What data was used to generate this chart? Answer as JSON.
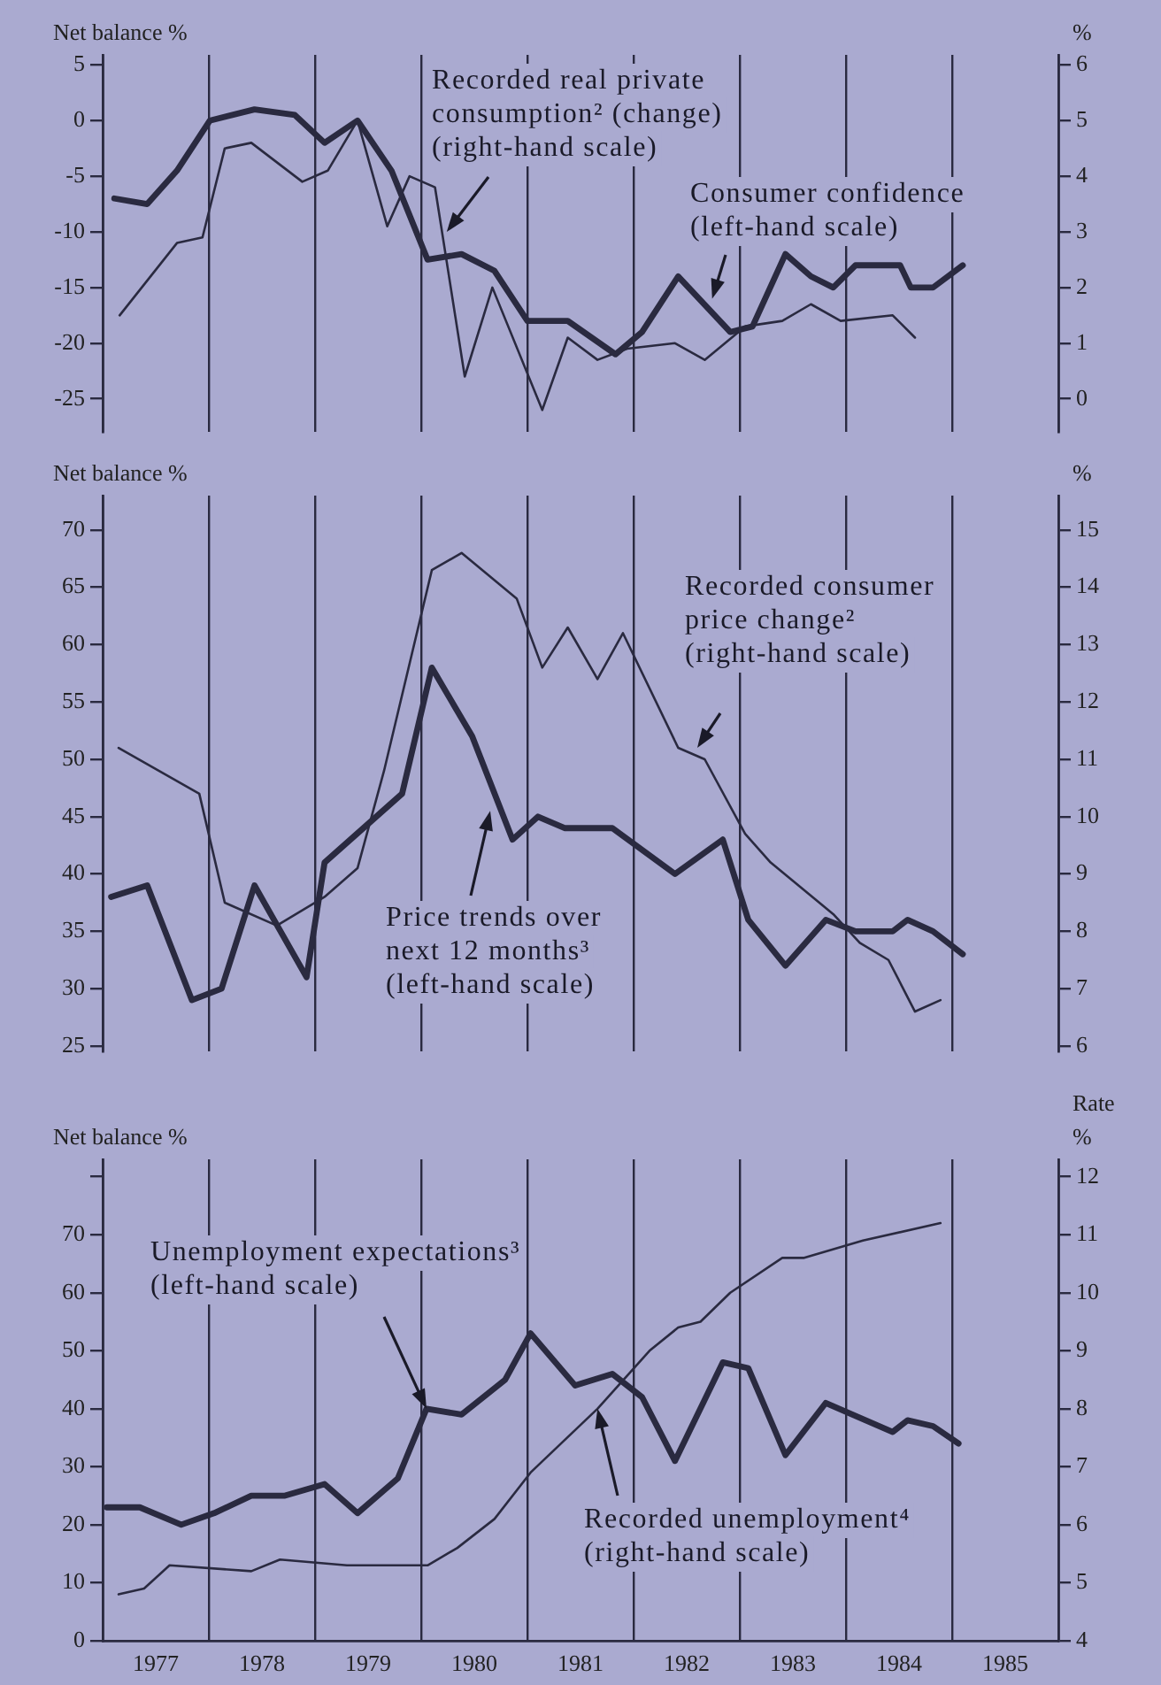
{
  "chart_data": [
    {
      "type": "line",
      "ylabel": "Net balance %",
      "y2label": "%",
      "grid": "x",
      "tick_labels": "y",
      "xlim": [
        1977,
        1986
      ],
      "xticks": [
        {
          "value": 1977,
          "label": null
        },
        {
          "value": 1978,
          "label": null
        },
        {
          "value": 1979,
          "label": null
        },
        {
          "value": 1980,
          "label": null
        },
        {
          "value": 1981,
          "label": null
        },
        {
          "value": 1982,
          "label": null
        },
        {
          "value": 1983,
          "label": null
        },
        {
          "value": 1984,
          "label": null
        },
        {
          "value": 1985,
          "label": null
        },
        {
          "value": 1986,
          "label": null
        }
      ],
      "ylim": [
        -28,
        5.9
      ],
      "yticks": [
        -25,
        -20,
        -15,
        -10,
        -5,
        0,
        5
      ],
      "y2lim": [
        -0.6,
        6.18
      ],
      "y2ticks": [
        0,
        1,
        2,
        3,
        4,
        5,
        6
      ],
      "series": [
        {
          "color": "#2a2a40",
          "x": [
            1977.11,
            1977.42,
            1977.7,
            1978.01,
            1978.43,
            1978.81,
            1979.09,
            1979.4,
            1979.72,
            1980.06,
            1980.38,
            1980.69,
            1981.0,
            1981.38,
            1981.83,
            1982.08,
            1982.42,
            1982.91,
            1983.12,
            1983.43,
            1983.67,
            1983.88,
            1984.09,
            1984.51,
            1984.61,
            1984.82,
            1985.1
          ],
          "values": [
            -7,
            -7.5,
            -4.5,
            0,
            1,
            0.5,
            -2,
            0,
            -4.5,
            -12.5,
            -12,
            -13.5,
            -18,
            -18,
            -21,
            -19,
            -14,
            -19,
            -18.5,
            -12,
            -14,
            -15,
            -13,
            -13,
            -15,
            -15,
            -13
          ]
        },
        {
          "color": "#2a2a40",
          "axis": "y2",
          "x": [
            1977.16,
            1977.7,
            1977.94,
            1978.15,
            1978.4,
            1978.88,
            1979.12,
            1979.4,
            1979.68,
            1979.89,
            1980.13,
            1980.41,
            1980.67,
            1981.14,
            1981.38,
            1981.66,
            1981.94,
            1982.39,
            1982.67,
            1983.05,
            1983.4,
            1983.67,
            1983.95,
            1984.44,
            1984.65
          ],
          "values": [
            1.5,
            2.8,
            2.9,
            4.5,
            4.6,
            3.9,
            4.1,
            5.0,
            3.1,
            4.0,
            3.8,
            0.4,
            2.0,
            -0.2,
            1.1,
            0.7,
            0.9,
            1.0,
            0.7,
            1.3,
            1.4,
            1.7,
            1.4,
            1.5,
            1.1
          ]
        }
      ],
      "annotations": [
        {
          "text": "Recorded real private\nconsumption² (change)\n(right-hand scale)",
          "x": 1980.24,
          "y": -10
        },
        {
          "text": "Consumer confidence\n(left-hand scale)",
          "x": 1982.74,
          "y": -16
        }
      ]
    },
    {
      "type": "line",
      "ylabel": "Net balance %",
      "y2label": "%",
      "grid": "x",
      "tick_labels": "y",
      "xlim": [
        1977,
        1986
      ],
      "xticks": [
        {
          "value": 1977,
          "label": null
        },
        {
          "value": 1978,
          "label": null
        },
        {
          "value": 1979,
          "label": null
        },
        {
          "value": 1980,
          "label": null
        },
        {
          "value": 1981,
          "label": null
        },
        {
          "value": 1982,
          "label": null
        },
        {
          "value": 1983,
          "label": null
        },
        {
          "value": 1984,
          "label": null
        },
        {
          "value": 1985,
          "label": null
        },
        {
          "value": 1986,
          "label": null
        }
      ],
      "ylim": [
        24.5,
        73
      ],
      "yticks": [
        25,
        30,
        35,
        40,
        45,
        50,
        55,
        60,
        65,
        70
      ],
      "y2lim": [
        5.9,
        15.6
      ],
      "y2ticks": [
        6,
        7,
        8,
        9,
        10,
        11,
        12,
        13,
        14,
        15
      ],
      "series": [
        {
          "color": "#2a2a40",
          "x": [
            1977.08,
            1977.42,
            1977.84,
            1978.12,
            1978.43,
            1978.92,
            1979.09,
            1979.82,
            1980.1,
            1980.48,
            1980.86,
            1981.1,
            1981.35,
            1981.8,
            1982.39,
            1982.84,
            1983.08,
            1983.43,
            1983.81,
            1984.09,
            1984.44,
            1984.58,
            1984.82,
            1985.1
          ],
          "values": [
            38,
            39,
            29,
            30,
            39,
            31,
            41,
            47,
            58,
            52,
            43,
            45,
            44,
            44,
            40,
            43,
            36,
            32,
            36,
            35,
            35,
            36,
            35,
            33
          ]
        },
        {
          "color": "#2a2a40",
          "axis": "y2",
          "x": [
            1977.15,
            1977.91,
            1978.15,
            1978.64,
            1979.09,
            1979.4,
            1979.65,
            1980.1,
            1980.38,
            1980.9,
            1981.14,
            1981.38,
            1981.66,
            1981.9,
            1982.42,
            1982.67,
            1983.05,
            1983.29,
            1983.88,
            1984.13,
            1984.4,
            1984.65,
            1984.89
          ],
          "values": [
            11.2,
            10.4,
            8.5,
            8.1,
            8.6,
            9.1,
            10.8,
            14.3,
            14.6,
            13.8,
            12.6,
            13.3,
            12.4,
            13.2,
            11.2,
            11.0,
            9.7,
            9.2,
            8.3,
            7.8,
            7.5,
            6.6,
            6.8
          ]
        }
      ],
      "annotations": [
        {
          "text": "Recorded consumer\nprice change²\n(right-hand scale)",
          "x": 1982.6,
          "y": 51
        },
        {
          "text": "Price trends over\nnext 12 months³\n(left-hand scale)",
          "x": 1980.65,
          "y": 45.5
        }
      ]
    },
    {
      "type": "line",
      "ylabel": "Net balance %",
      "y2label": "Rate %",
      "grid": "x",
      "xlim": [
        1977,
        1986
      ],
      "xticks": [
        {
          "value": 1977,
          "label": null
        },
        {
          "value": 1977.5,
          "label": "1977"
        },
        {
          "value": 1978,
          "label": null
        },
        {
          "value": 1978.5,
          "label": "1978"
        },
        {
          "value": 1979,
          "label": null
        },
        {
          "value": 1979.5,
          "label": "1979"
        },
        {
          "value": 1980,
          "label": null
        },
        {
          "value": 1980.5,
          "label": "1980"
        },
        {
          "value": 1981,
          "label": null
        },
        {
          "value": 1981.5,
          "label": "1981"
        },
        {
          "value": 1982,
          "label": null
        },
        {
          "value": 1982.5,
          "label": "1982"
        },
        {
          "value": 1983,
          "label": null
        },
        {
          "value": 1983.5,
          "label": "1983"
        },
        {
          "value": 1984,
          "label": null
        },
        {
          "value": 1984.5,
          "label": "1984"
        },
        {
          "value": 1985,
          "label": null
        },
        {
          "value": 1985.5,
          "label": "1985"
        },
        {
          "value": 1986,
          "label": null
        }
      ],
      "ylim": [
        0,
        83
      ],
      "yticks": [
        0,
        10,
        20,
        30,
        40,
        50,
        60,
        70,
        {
          "value": 80,
          "label": null
        }
      ],
      "y2lim": [
        4,
        12.3
      ],
      "y2ticks": [
        4,
        5,
        6,
        7,
        8,
        9,
        10,
        11,
        12
      ],
      "series": [
        {
          "color": "#2a2a40",
          "x": [
            1977.04,
            1977.35,
            1977.74,
            1978.05,
            1978.4,
            1978.71,
            1979.09,
            1979.4,
            1979.78,
            1980.05,
            1980.38,
            1980.79,
            1981.03,
            1981.45,
            1981.8,
            1982.08,
            1982.39,
            1982.84,
            1983.08,
            1983.43,
            1983.81,
            1984.44,
            1984.58,
            1984.82,
            1985.06
          ],
          "values": [
            23,
            23,
            20,
            22,
            25,
            25,
            27,
            22,
            28,
            40,
            39,
            45,
            53,
            44,
            46,
            42,
            31,
            48,
            47,
            32,
            41,
            36,
            38,
            37,
            34
          ]
        },
        {
          "color": "#2a2a40",
          "axis": "y2",
          "x": [
            1977.15,
            1977.39,
            1977.63,
            1978.4,
            1978.67,
            1979.3,
            1979.72,
            1980.06,
            1980.34,
            1980.69,
            1981.03,
            1981.66,
            1982.15,
            1982.42,
            1982.63,
            1982.91,
            1983.4,
            1983.6,
            1984.16,
            1984.89
          ],
          "values": [
            4.8,
            4.9,
            5.3,
            5.2,
            5.4,
            5.3,
            5.3,
            5.3,
            5.6,
            6.1,
            6.9,
            8.0,
            9.0,
            9.4,
            9.5,
            10.0,
            10.6,
            10.6,
            10.9,
            11.2
          ]
        }
      ],
      "annotations": [
        {
          "text": "Unemployment expectations³\n(left-hand scale)",
          "x": 1980.05,
          "y": 40
        },
        {
          "text": "Recorded unemployment⁴\n(right-hand scale)",
          "x": 1981.66,
          "y": 40
        }
      ]
    }
  ]
}
